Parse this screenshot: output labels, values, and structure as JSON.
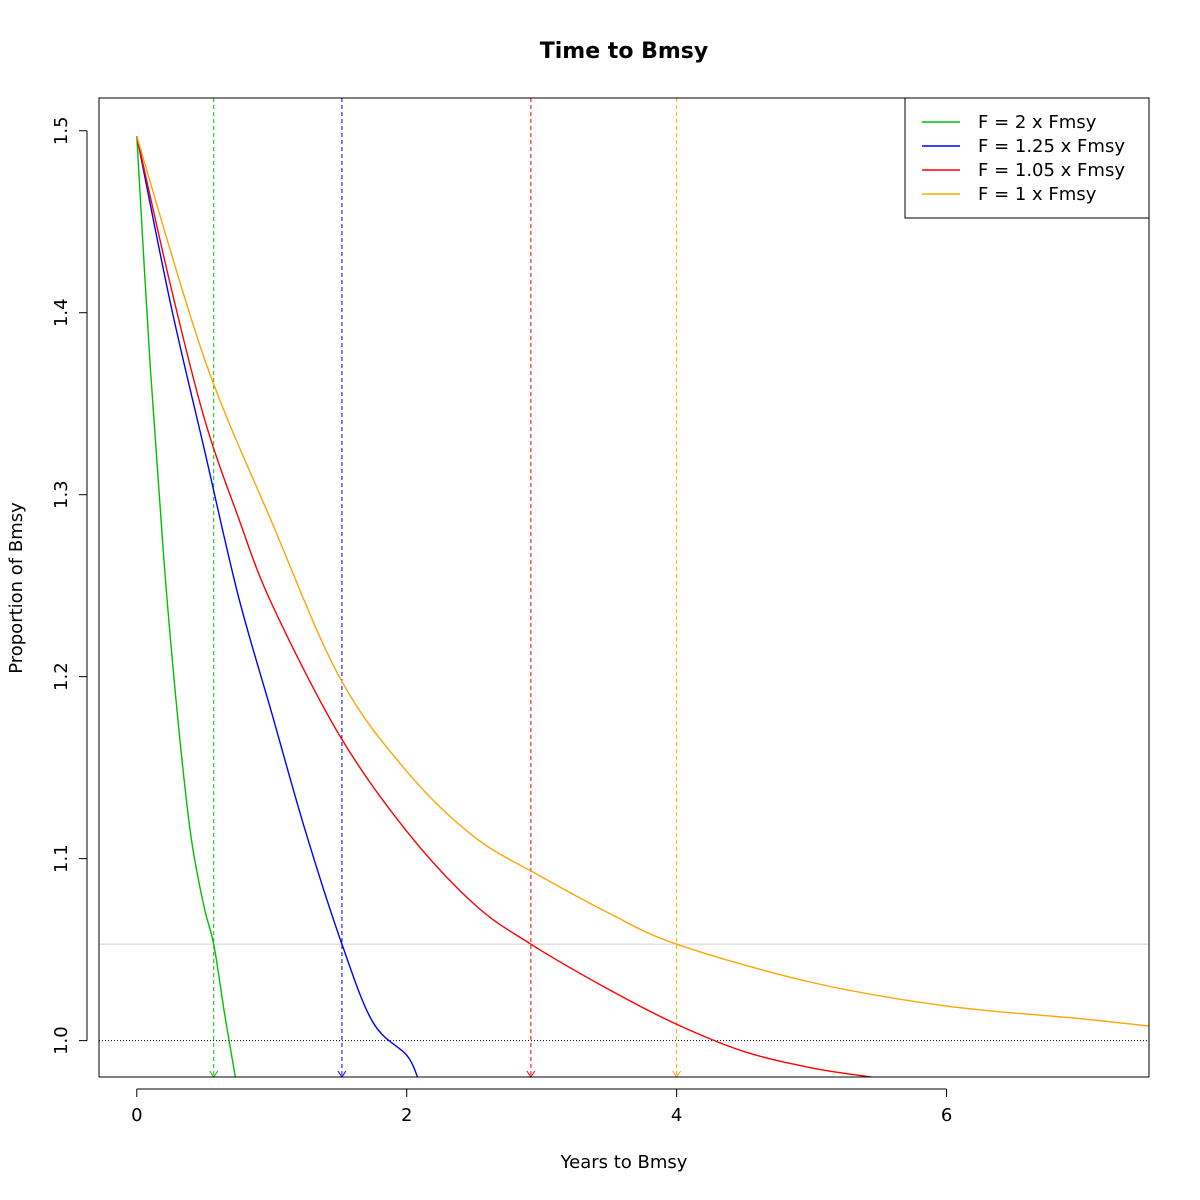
{
  "chart_data": {
    "type": "line",
    "title": "Time to Bmsy",
    "xlabel": "Years to Bmsy",
    "ylabel": "Proportion of Bmsy",
    "xlim": [
      -0.28,
      7.5
    ],
    "ylim": [
      0.98,
      1.518
    ],
    "x_ticks": [
      0,
      2,
      4,
      6
    ],
    "x_tick_labels": [
      "0",
      "2",
      "4",
      "6"
    ],
    "y_ticks": [
      1.0,
      1.1,
      1.2,
      1.3,
      1.4,
      1.5
    ],
    "y_tick_labels": [
      "1.0",
      "1.1",
      "1.2",
      "1.3",
      "1.4",
      "1.5"
    ],
    "legend_position": "top-right",
    "reference_lines": [
      {
        "orientation": "horizontal",
        "y": 1.0,
        "style": "dotted",
        "color": "#000000"
      },
      {
        "orientation": "horizontal",
        "y": 1.053,
        "style": "solid",
        "color": "#d0d0d0"
      }
    ],
    "series": [
      {
        "name": "F = 2 x Fmsy",
        "color": "#00c000",
        "x": [
          0,
          0.1,
          0.2,
          0.3,
          0.4,
          0.5,
          0.57,
          0.65,
          0.73
        ],
        "y": [
          1.497,
          1.37,
          1.265,
          1.18,
          1.113,
          1.073,
          1.053,
          1.015,
          0.98
        ],
        "time_to_target": 0.57
      },
      {
        "name": "F = 1.25 x Fmsy",
        "color": "#0000ff",
        "x": [
          0,
          0.25,
          0.5,
          0.75,
          1.0,
          1.25,
          1.52,
          1.75,
          2.0,
          2.08
        ],
        "y": [
          1.497,
          1.405,
          1.325,
          1.245,
          1.18,
          1.115,
          1.053,
          1.01,
          0.992,
          0.98
        ],
        "time_to_target": 1.52
      },
      {
        "name": "F = 1.05 x Fmsy",
        "color": "#ff0000",
        "x": [
          0,
          0.25,
          0.5,
          0.75,
          1.0,
          1.5,
          2.0,
          2.5,
          2.92,
          3.5,
          4.0,
          4.5,
          5.0,
          5.44
        ],
        "y": [
          1.497,
          1.415,
          1.342,
          1.288,
          1.24,
          1.168,
          1.115,
          1.075,
          1.053,
          1.028,
          1.009,
          0.994,
          0.985,
          0.98
        ],
        "time_to_target": 2.92
      },
      {
        "name": "F = 1 x Fmsy",
        "color": "#ffa500",
        "x": [
          0,
          0.5,
          1.0,
          1.5,
          2.0,
          2.5,
          3.0,
          3.5,
          4.0,
          5.0,
          6.0,
          7.0,
          7.5
        ],
        "y": [
          1.497,
          1.375,
          1.285,
          1.2,
          1.148,
          1.112,
          1.09,
          1.07,
          1.053,
          1.032,
          1.019,
          1.012,
          1.008
        ],
        "time_to_target": 4.0
      }
    ]
  }
}
